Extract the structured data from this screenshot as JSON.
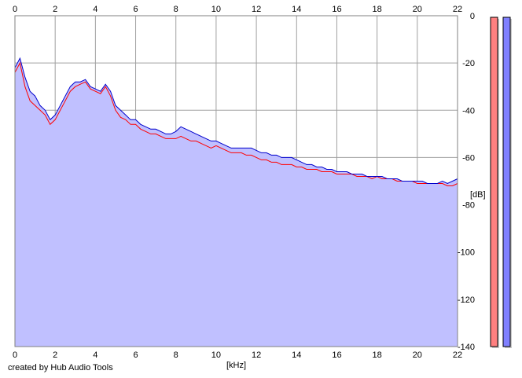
{
  "footer": {
    "credit": "created by Hub Audio Tools"
  },
  "chart_data": {
    "type": "area",
    "title": "",
    "xlabel": "[kHz]",
    "ylabel": "[dB]",
    "xlim": [
      0,
      22
    ],
    "ylim": [
      -140,
      0
    ],
    "x_ticks": [
      0,
      2,
      4,
      6,
      8,
      10,
      12,
      14,
      16,
      18,
      20,
      22
    ],
    "y_ticks": [
      0,
      -20,
      -40,
      -60,
      -80,
      -100,
      -120,
      -140
    ],
    "grid": true,
    "fill_color": "#c0c0ff",
    "series": [
      {
        "color": "#ff0000",
        "x": [
          0,
          0.25,
          0.5,
          0.75,
          1,
          1.25,
          1.5,
          1.75,
          2,
          2.25,
          2.5,
          2.75,
          3,
          3.25,
          3.5,
          3.75,
          4,
          4.25,
          4.5,
          4.75,
          5,
          5.25,
          5.5,
          5.75,
          6,
          6.25,
          6.5,
          6.75,
          7,
          7.25,
          7.5,
          7.75,
          8,
          8.25,
          8.5,
          8.75,
          9,
          9.25,
          9.5,
          9.75,
          10,
          10.25,
          10.5,
          10.75,
          11,
          11.25,
          11.5,
          11.75,
          12,
          12.25,
          12.5,
          12.75,
          13,
          13.25,
          13.5,
          13.75,
          14,
          14.25,
          14.5,
          14.75,
          15,
          15.25,
          15.5,
          15.75,
          16,
          16.25,
          16.5,
          16.75,
          17,
          17.25,
          17.5,
          17.75,
          18,
          18.25,
          18.5,
          18.75,
          19,
          19.25,
          19.5,
          19.75,
          20,
          20.25,
          20.5,
          20.75,
          21,
          21.25,
          21.5,
          21.75,
          22
        ],
        "values": [
          -24,
          -20,
          -30,
          -36,
          -38,
          -40,
          -42,
          -46,
          -44,
          -40,
          -36,
          -32,
          -30,
          -29,
          -28,
          -31,
          -32,
          -33,
          -30,
          -34,
          -40,
          -43,
          -44,
          -46,
          -46,
          -48,
          -49,
          -50,
          -50,
          -51,
          -52,
          -52,
          -52,
          -51,
          -52,
          -53,
          -53,
          -54,
          -55,
          -56,
          -55,
          -56,
          -57,
          -58,
          -58,
          -58,
          -59,
          -59,
          -60,
          -61,
          -61,
          -62,
          -62,
          -63,
          -63,
          -63,
          -64,
          -64,
          -65,
          -65,
          -65,
          -66,
          -66,
          -66,
          -67,
          -67,
          -67,
          -67,
          -68,
          -68,
          -68,
          -69,
          -68,
          -69,
          -69,
          -69,
          -70,
          -70,
          -70,
          -70,
          -71,
          -71,
          -71,
          -71,
          -71,
          -71,
          -72,
          -72,
          -71
        ]
      },
      {
        "color": "#0000cc",
        "x": [
          0,
          0.25,
          0.5,
          0.75,
          1,
          1.25,
          1.5,
          1.75,
          2,
          2.25,
          2.5,
          2.75,
          3,
          3.25,
          3.5,
          3.75,
          4,
          4.25,
          4.5,
          4.75,
          5,
          5.25,
          5.5,
          5.75,
          6,
          6.25,
          6.5,
          6.75,
          7,
          7.25,
          7.5,
          7.75,
          8,
          8.25,
          8.5,
          8.75,
          9,
          9.25,
          9.5,
          9.75,
          10,
          10.25,
          10.5,
          10.75,
          11,
          11.25,
          11.5,
          11.75,
          12,
          12.25,
          12.5,
          12.75,
          13,
          13.25,
          13.5,
          13.75,
          14,
          14.25,
          14.5,
          14.75,
          15,
          15.25,
          15.5,
          15.75,
          16,
          16.25,
          16.5,
          16.75,
          17,
          17.25,
          17.5,
          17.75,
          18,
          18.25,
          18.5,
          18.75,
          19,
          19.25,
          19.5,
          19.75,
          20,
          20.25,
          20.5,
          20.75,
          21,
          21.25,
          21.5,
          21.75,
          22
        ],
        "values": [
          -22,
          -18,
          -26,
          -32,
          -34,
          -38,
          -40,
          -44,
          -42,
          -38,
          -34,
          -30,
          -28,
          -28,
          -27,
          -30,
          -31,
          -32,
          -29,
          -32,
          -38,
          -40,
          -42,
          -44,
          -44,
          -46,
          -47,
          -48,
          -48,
          -49,
          -50,
          -50,
          -49,
          -47,
          -48,
          -49,
          -50,
          -51,
          -52,
          -53,
          -53,
          -54,
          -55,
          -56,
          -56,
          -56,
          -56,
          -56,
          -57,
          -58,
          -58,
          -59,
          -59,
          -60,
          -60,
          -60,
          -61,
          -62,
          -63,
          -63,
          -64,
          -64,
          -65,
          -65,
          -66,
          -66,
          -66,
          -67,
          -67,
          -67,
          -68,
          -68,
          -68,
          -68,
          -69,
          -69,
          -69,
          -70,
          -70,
          -70,
          -70,
          -70,
          -71,
          -71,
          -71,
          -70,
          -71,
          -70,
          -69
        ]
      }
    ],
    "meters": {
      "left": {
        "color": "#ff8080",
        "level": 0
      },
      "right": {
        "color": "#8080ff",
        "level": 0
      }
    }
  }
}
